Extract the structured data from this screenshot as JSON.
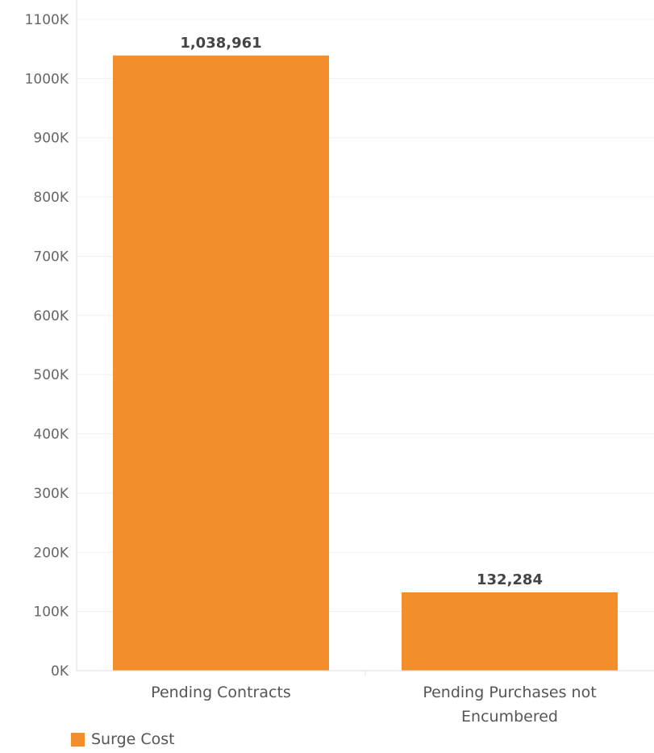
{
  "chart_data": {
    "type": "bar",
    "categories": [
      "Pending Contracts",
      "Pending Purchases not Encumbered"
    ],
    "category_lines": [
      [
        "Pending Contracts"
      ],
      [
        "Pending Purchases not",
        "Encumbered"
      ]
    ],
    "series": [
      {
        "name": "Surge Cost",
        "values": [
          1038961,
          132284
        ]
      }
    ],
    "data_labels": [
      "1,038,961",
      "132,284"
    ],
    "ylim": [
      0,
      1100000
    ],
    "yticks": [
      0,
      100000,
      200000,
      300000,
      400000,
      500000,
      600000,
      700000,
      800000,
      900000,
      1000000,
      1100000
    ],
    "ytick_labels": [
      "0K",
      "100K",
      "200K",
      "300K",
      "400K",
      "500K",
      "600K",
      "700K",
      "800K",
      "900K",
      "1000K",
      "1100K"
    ],
    "xlabel": "",
    "ylabel": "",
    "grid": true,
    "legend_position": "bottom-left"
  },
  "colors": {
    "bar": "#f28e2b",
    "grid": "#efefef",
    "axis": "#dddddd"
  },
  "legend": {
    "label": "Surge Cost"
  }
}
